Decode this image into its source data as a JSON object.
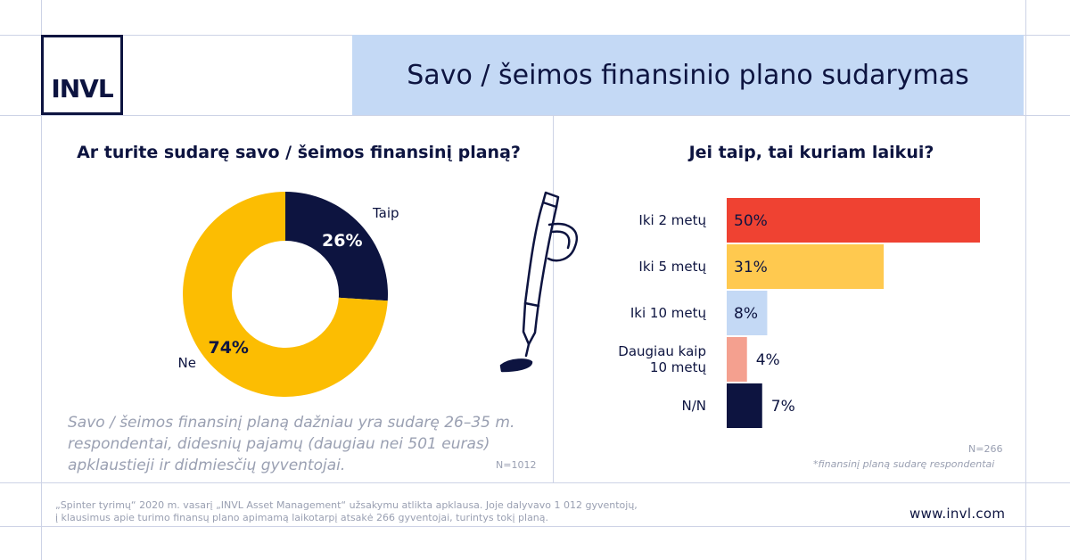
{
  "brand": {
    "logo_text": "INVL",
    "url": "www.invl.com"
  },
  "header": {
    "title": "Savo / šeimos finansinio plano sudarymas"
  },
  "colors": {
    "navy": "#0d1440",
    "yellow": "#fcbd02",
    "red": "#ef4232",
    "light_yellow": "#ffc94f",
    "light_blue": "#c4d9f5",
    "pink": "#f4a08f"
  },
  "left_panel": {
    "question": "Ar turite sudarę savo / šeimos finansinį planą?",
    "note": "Savo / šeimos finansinį planą dažniau yra sudarę 26–35 m. respondentai, didesnių pajamų (daugiau nei 501 euras) apklaustieji ir didmiesčių gyventojai.",
    "sample": "N=1012"
  },
  "right_panel": {
    "question": "Jei taip, tai kuriam laikui?",
    "sample": "N=266",
    "footnote": "*finansinį planą sudarę respondentai"
  },
  "footer": {
    "line1": "„Spinter tyrimų“ 2020 m. vasarį „INVL Asset Management“ užsakymu atlikta apklausa. Joje dalyvavo 1 012 gyventojų,",
    "line2": "į klausimus apie turimo finansų plano apimamą laikotarpį atsakė 266 gyventojai, turintys tokį planą."
  },
  "chart_data": [
    {
      "type": "pie",
      "title": "Ar turite sudarę savo / šeimos finansinį planą?",
      "categories": [
        "Taip",
        "Ne"
      ],
      "values": [
        26,
        74
      ],
      "value_labels": [
        "26%",
        "74%"
      ],
      "colors": [
        "#0d1440",
        "#fcbd02"
      ]
    },
    {
      "type": "bar",
      "orientation": "horizontal",
      "title": "Jei taip, tai kuriam laikui?",
      "categories": [
        [
          "Iki 2 metų"
        ],
        [
          "Iki 5 metų"
        ],
        [
          "Iki 10 metų"
        ],
        [
          "Daugiau kaip",
          "10 metų"
        ],
        [
          "N/N"
        ]
      ],
      "values": [
        50,
        31,
        8,
        4,
        7
      ],
      "value_labels": [
        "50%",
        "31%",
        "8%",
        "4%",
        "7%"
      ],
      "colors": [
        "#ef4232",
        "#ffc94f",
        "#c4d9f5",
        "#f4a08f",
        "#0d1440"
      ],
      "xlim": [
        0,
        50
      ]
    }
  ]
}
